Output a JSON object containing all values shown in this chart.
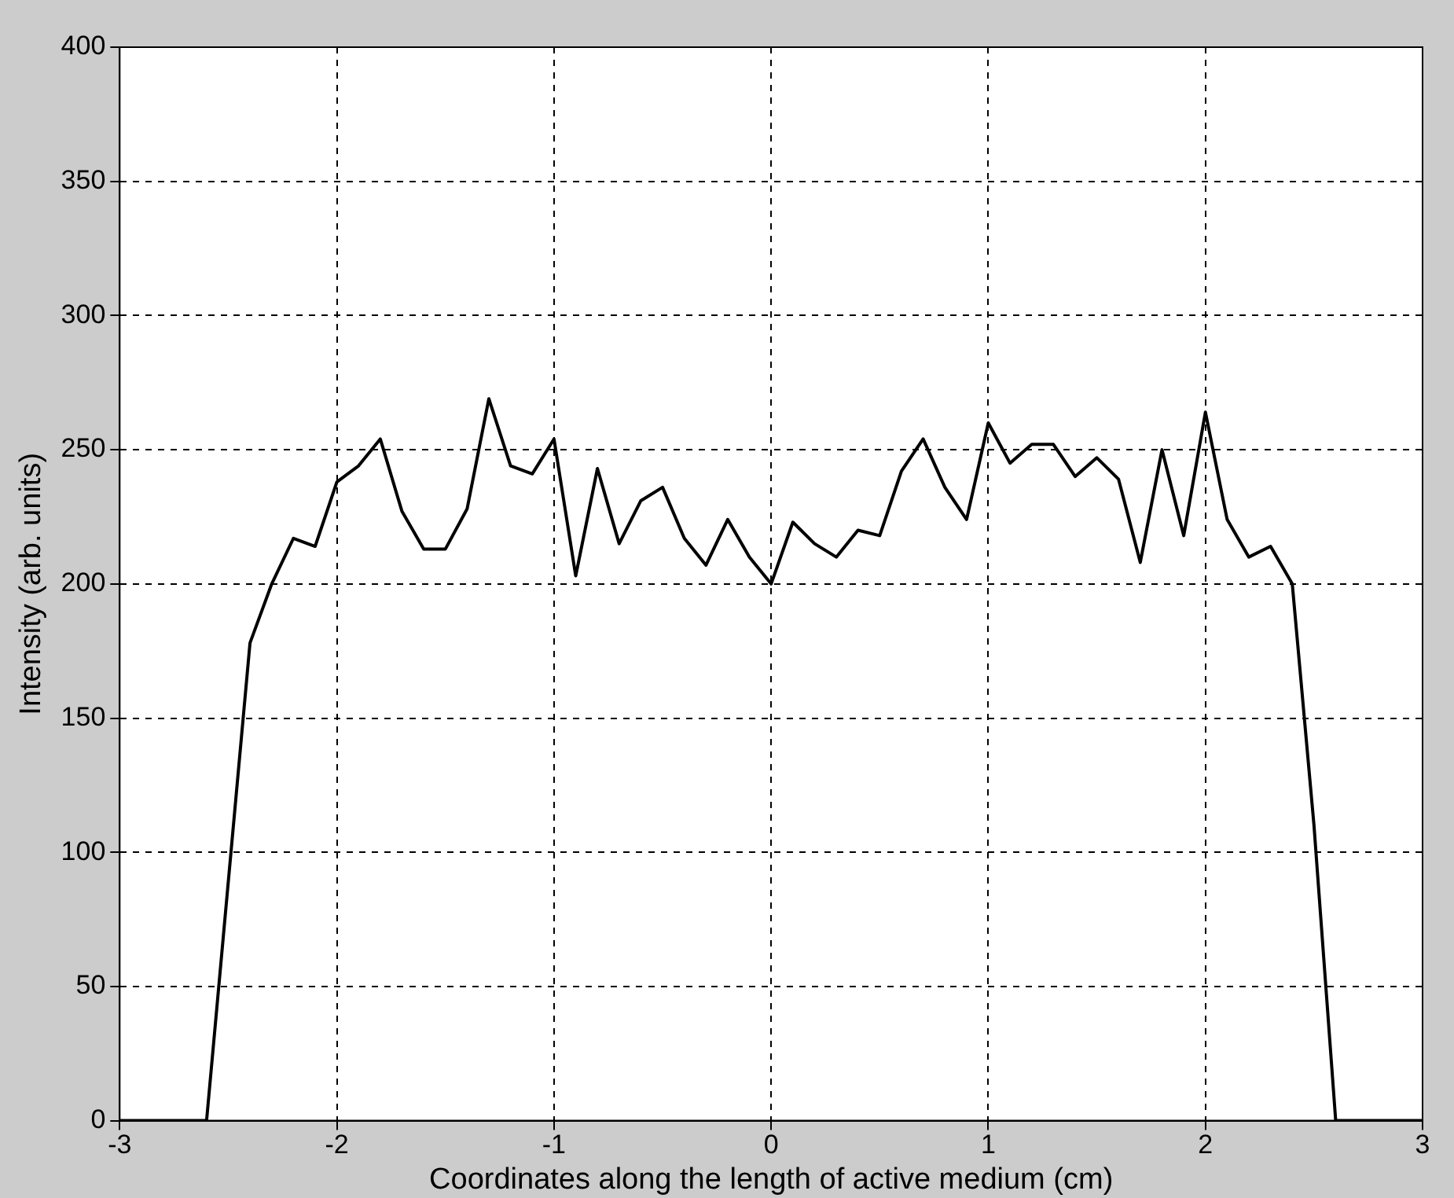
{
  "chart_data": {
    "type": "line",
    "xlabel": "Coordinates along the length of active medium (cm)",
    "ylabel": "Intensity (arb. units)",
    "x": [
      -3,
      -2.6,
      -2.4,
      -2.3,
      -2.2,
      -2.1,
      -2.0,
      -1.9,
      -1.8,
      -1.7,
      -1.6,
      -1.5,
      -1.4,
      -1.3,
      -1.2,
      -1.1,
      -1.0,
      -0.9,
      -0.8,
      -0.7,
      -0.6,
      -0.5,
      -0.4,
      -0.3,
      -0.2,
      -0.1,
      0,
      0.1,
      0.2,
      0.3,
      0.4,
      0.5,
      0.6,
      0.7,
      0.8,
      0.9,
      1.0,
      1.1,
      1.2,
      1.3,
      1.4,
      1.5,
      1.6,
      1.7,
      1.8,
      1.9,
      2.0,
      2.1,
      2.2,
      2.3,
      2.4,
      2.5,
      2.6,
      3
    ],
    "series": [
      {
        "color": "#000000",
        "values": [
          0,
          0,
          178,
          200,
          217,
          214,
          238,
          244,
          254,
          227,
          213,
          213,
          228,
          269,
          244,
          241,
          254,
          203,
          243,
          215,
          231,
          236,
          217,
          207,
          224,
          210,
          200,
          223,
          215,
          210,
          220,
          218,
          242,
          254,
          236,
          224,
          260,
          245,
          252,
          252,
          240,
          247,
          239,
          208,
          250,
          218,
          264,
          224,
          210,
          214,
          200,
          110,
          0,
          0
        ]
      }
    ],
    "xlim": [
      -3,
      3
    ],
    "xticks": [
      -3,
      -2,
      -1,
      0,
      1,
      2,
      3
    ],
    "ylim": [
      0,
      400
    ],
    "yticks": [
      0,
      50,
      100,
      150,
      200,
      250,
      300,
      350,
      400
    ],
    "grid": true,
    "legend": false,
    "marker": "none",
    "line_style": "solid"
  }
}
